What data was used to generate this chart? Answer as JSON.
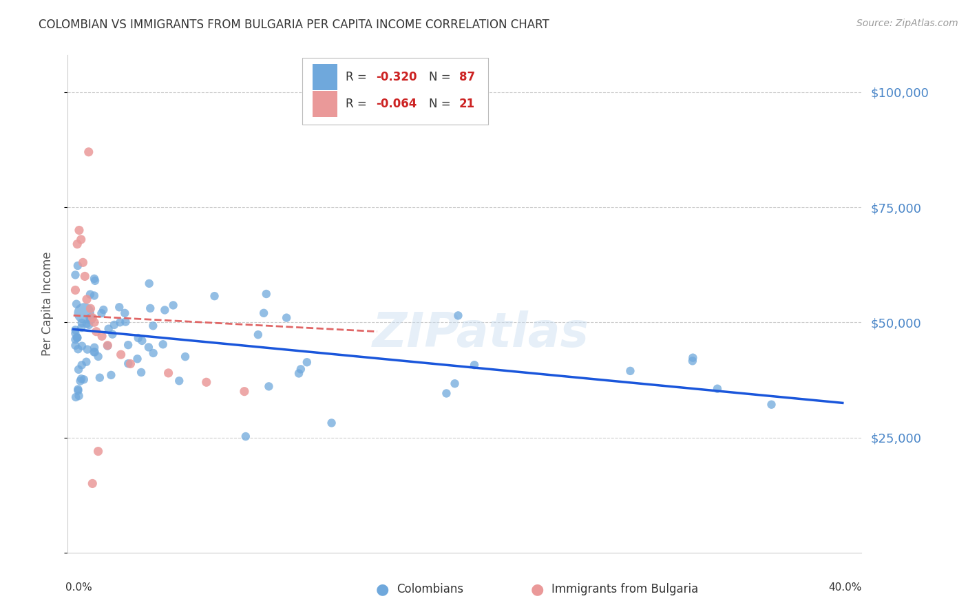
{
  "title": "COLOMBIAN VS IMMIGRANTS FROM BULGARIA PER CAPITA INCOME CORRELATION CHART",
  "source": "Source: ZipAtlas.com",
  "ylabel": "Per Capita Income",
  "yticks": [
    0,
    25000,
    50000,
    75000,
    100000
  ],
  "ytick_labels": [
    "",
    "$25,000",
    "$50,000",
    "$75,000",
    "$100,000"
  ],
  "ylim": [
    0,
    108000
  ],
  "xlim": [
    -0.003,
    0.415
  ],
  "blue_color": "#6fa8dc",
  "pink_color": "#ea9999",
  "line_blue": "#1a56db",
  "line_pink": "#e06666",
  "grid_color": "#cccccc",
  "title_color": "#333333",
  "ylabel_color": "#555555",
  "tick_label_color": "#4a86c8",
  "source_color": "#999999",
  "watermark": "ZIPatlas",
  "blue_trendline_x": [
    0.0,
    0.405
  ],
  "blue_trendline_y": [
    48500,
    32500
  ],
  "pink_trendline_x": [
    0.0,
    0.16
  ],
  "pink_trendline_y": [
    51500,
    48000
  ]
}
